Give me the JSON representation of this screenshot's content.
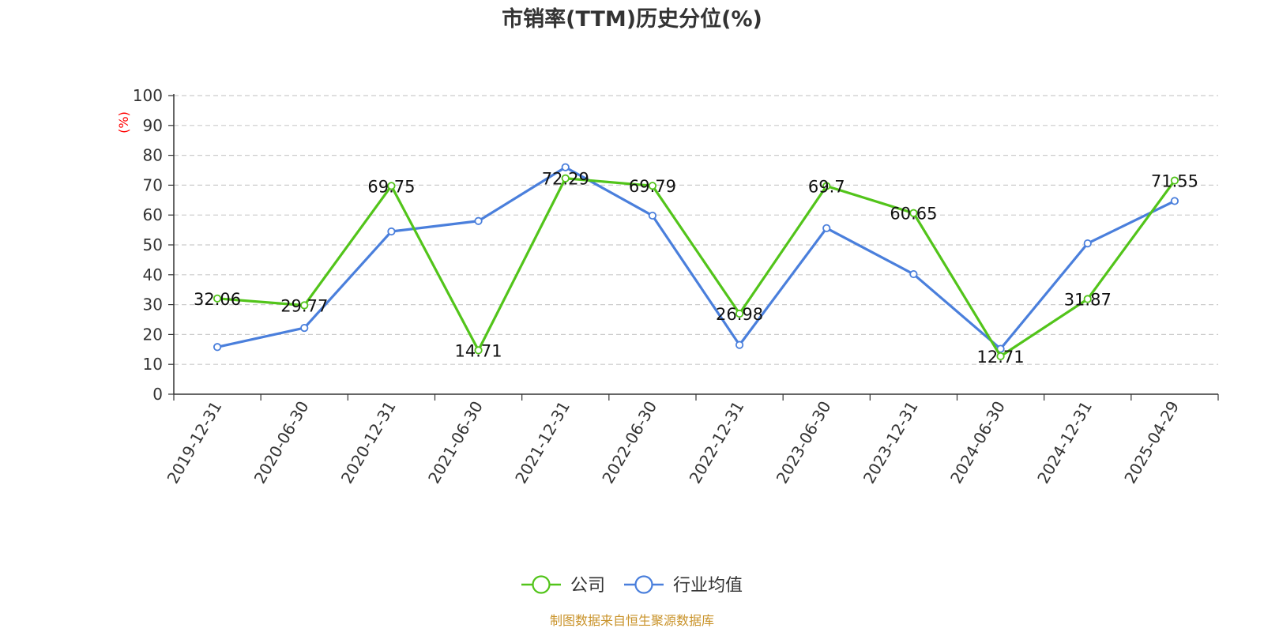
{
  "chart_data": {
    "type": "line",
    "title": "市销率(TTM)历史分位(%)",
    "ylabel": "(%)",
    "ylim": [
      0,
      100
    ],
    "yticks": [
      0,
      10,
      20,
      30,
      40,
      50,
      60,
      70,
      80,
      90,
      100
    ],
    "grid": true,
    "legend_position": "bottom",
    "categories": [
      "2019-12-31",
      "2020-06-30",
      "2020-12-31",
      "2021-06-30",
      "2021-12-31",
      "2022-06-30",
      "2022-12-31",
      "2023-06-30",
      "2023-12-31",
      "2024-06-30",
      "2024-12-31",
      "2025-04-29"
    ],
    "series": [
      {
        "name": "公司",
        "color": "#52c41a",
        "values": [
          32.06,
          29.77,
          69.75,
          14.71,
          72.29,
          69.79,
          26.98,
          69.7,
          60.65,
          12.71,
          31.87,
          71.55
        ],
        "labels": [
          "32.06",
          "29.77",
          "69.75",
          "14.71",
          "72.29",
          "69.79",
          "26.98",
          "69.7",
          "60.65",
          "12.71",
          "31.87",
          "71.55"
        ]
      },
      {
        "name": "行业均值",
        "color": "#4a7fdc",
        "values": [
          15.8,
          22.2,
          54.5,
          58.0,
          76.0,
          59.8,
          16.5,
          55.6,
          40.2,
          15.2,
          50.5,
          64.7
        ]
      }
    ]
  },
  "footer": {
    "source": "制图数据来自恒生聚源数据库"
  }
}
